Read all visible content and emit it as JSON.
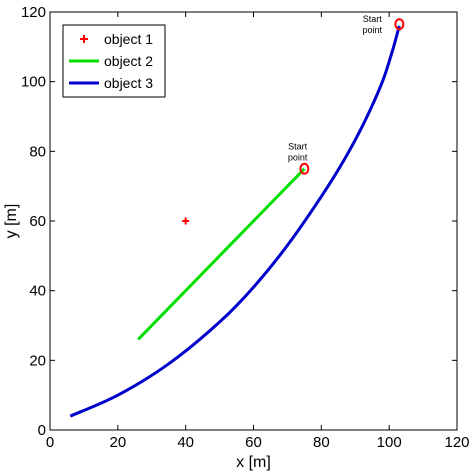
{
  "chart_data": {
    "type": "line",
    "xlabel": "x [m]",
    "ylabel": "y [m]",
    "xlim": [
      0,
      120
    ],
    "ylim": [
      0,
      120
    ],
    "xticks": [
      0,
      20,
      40,
      60,
      80,
      100,
      120
    ],
    "yticks": [
      0,
      20,
      40,
      60,
      80,
      100,
      120
    ],
    "grid": false,
    "legend_position": "top-left",
    "series": [
      {
        "name": "object 1",
        "kind": "marker",
        "marker": "plus",
        "color": "#ff0000",
        "points": [
          [
            40,
            60
          ]
        ]
      },
      {
        "name": "object 2",
        "kind": "line",
        "color": "#00e000",
        "points": [
          [
            26,
            26
          ],
          [
            75,
            75
          ]
        ]
      },
      {
        "name": "object 3",
        "kind": "line",
        "color": "#0000cc",
        "points": [
          [
            6,
            4
          ],
          [
            20,
            10
          ],
          [
            35,
            19
          ],
          [
            50,
            31
          ],
          [
            60,
            41
          ],
          [
            70,
            53
          ],
          [
            80,
            67
          ],
          [
            87,
            78
          ],
          [
            93,
            89
          ],
          [
            98,
            100
          ],
          [
            101,
            109
          ],
          [
            103,
            116
          ]
        ]
      }
    ],
    "annotations": [
      {
        "name": "start-point-object-2",
        "text_lines": [
          "Start",
          "point"
        ],
        "marker_at": [
          75,
          75
        ],
        "label_at": [
          73,
          80
        ]
      },
      {
        "name": "start-point-object-3",
        "text_lines": [
          "Start",
          "point"
        ],
        "marker_at": [
          103,
          116.5
        ],
        "label_at": [
          95,
          116.5
        ]
      }
    ],
    "annotation_marker_color": "#ff0000"
  }
}
